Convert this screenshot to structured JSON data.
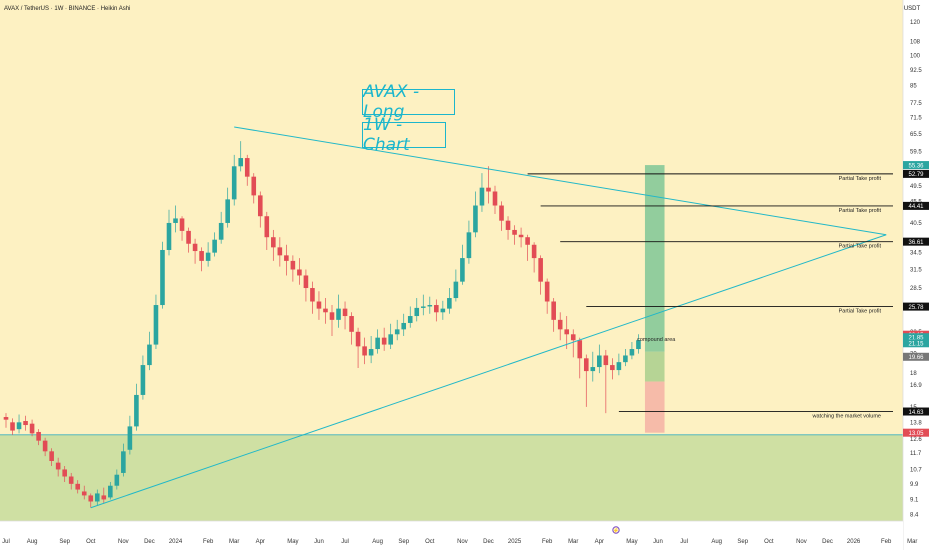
{
  "header": {
    "title": "AVAX / TetherUS · 1W · BINANCE · Heikin Ashi"
  },
  "currency_label": "USDT",
  "overlay_texts": {
    "title_long": "AVAX - Long",
    "title_chart": "1W - Chart"
  },
  "colors": {
    "background": "#fdf1c2",
    "up_candle": "#2ba5a0",
    "down_candle": "#e24c55",
    "trendline": "#22b8c8",
    "zone_green": "#cfe0a3",
    "target_green": "#7fc797",
    "stop_red": "#f5b2a5",
    "title_text": "#1cb6cc"
  },
  "annotations": [
    {
      "label": "Partial Take profit",
      "price": 52.79,
      "badge": "52.79"
    },
    {
      "label": "Partial Take profit",
      "price": 44.41,
      "badge": "44.41"
    },
    {
      "label": "Partial Take profit",
      "price": 36.61,
      "badge": "36.61"
    },
    {
      "label": "Partial Take profit",
      "price": 25.78,
      "badge": "25.78"
    },
    {
      "label": "watching the market volume",
      "price": 14.63,
      "badge": "14.63"
    },
    {
      "label": "compound area",
      "price": 19.9
    }
  ],
  "price_badges": [
    {
      "value": "55.36",
      "price": 55.36,
      "color": "#2ba5a0"
    },
    {
      "value": "52.79",
      "price": 52.79,
      "color": "#111111"
    },
    {
      "value": "44.41",
      "price": 44.41,
      "color": "#111111"
    },
    {
      "value": "36.61",
      "price": 36.61,
      "color": "#111111"
    },
    {
      "value": "25.78",
      "price": 25.78,
      "color": "#111111"
    },
    {
      "value": "22.15",
      "price": 22.15,
      "color": "#e24c55"
    },
    {
      "value": "21.85",
      "price": 21.85,
      "color": "#2ba5a0"
    },
    {
      "value": "21.15",
      "price": 21.15,
      "color": "#2ba5a0"
    },
    {
      "value": "19.66",
      "price": 19.66,
      "color": "#777777"
    },
    {
      "value": "14.63",
      "price": 14.63,
      "color": "#111111"
    },
    {
      "value": "13.05",
      "price": 13.05,
      "color": "#e24c55"
    }
  ],
  "chart_data": {
    "type": "candlestick",
    "title": "AVAX / TetherUS · 1W · BINANCE · Heikin Ashi",
    "scale": "log",
    "ylim": [
      8.1,
      135
    ],
    "y_ticks": [
      120,
      108,
      100,
      92.5,
      85,
      77.5,
      71.5,
      65.5,
      59.5,
      49.5,
      45.5,
      40.5,
      34.5,
      31.5,
      28.5,
      25.5,
      22.5,
      20,
      18,
      16.9,
      15,
      13.8,
      12.6,
      11.7,
      10.7,
      9.9,
      9.1,
      8.4
    ],
    "x_ticks": [
      {
        "label": "Jul",
        "week": 0
      },
      {
        "label": "Aug",
        "week": 4
      },
      {
        "label": "Sep",
        "week": 9
      },
      {
        "label": "Oct",
        "week": 13
      },
      {
        "label": "Nov",
        "week": 18
      },
      {
        "label": "Dec",
        "week": 22
      },
      {
        "label": "2024",
        "week": 26
      },
      {
        "label": "Feb",
        "week": 31
      },
      {
        "label": "Mar",
        "week": 35
      },
      {
        "label": "Apr",
        "week": 39
      },
      {
        "label": "May",
        "week": 44
      },
      {
        "label": "Jun",
        "week": 48
      },
      {
        "label": "Jul",
        "week": 52
      },
      {
        "label": "Aug",
        "week": 57
      },
      {
        "label": "Sep",
        "week": 61
      },
      {
        "label": "Oct",
        "week": 65
      },
      {
        "label": "Nov",
        "week": 70
      },
      {
        "label": "Dec",
        "week": 74
      },
      {
        "label": "2025",
        "week": 78
      },
      {
        "label": "Feb",
        "week": 83
      },
      {
        "label": "Mar",
        "week": 87
      },
      {
        "label": "Apr",
        "week": 91
      },
      {
        "label": "May",
        "week": 96
      },
      {
        "label": "Jun",
        "week": 100
      },
      {
        "label": "Jul",
        "week": 104
      },
      {
        "label": "Aug",
        "week": 109
      },
      {
        "label": "Sep",
        "week": 113
      },
      {
        "label": "Oct",
        "week": 117
      },
      {
        "label": "Nov",
        "week": 122
      },
      {
        "label": "Dec",
        "week": 126
      },
      {
        "label": "2026",
        "week": 130
      },
      {
        "label": "Feb",
        "week": 135
      },
      {
        "label": "Mar",
        "week": 139
      }
    ],
    "candles": [
      [
        14.2,
        14.0,
        14.5,
        13.4
      ],
      [
        13.8,
        13.2,
        14.1,
        12.9
      ],
      [
        13.3,
        13.8,
        14.4,
        13.0
      ],
      [
        13.9,
        13.6,
        14.3,
        13.2
      ],
      [
        13.7,
        13.0,
        14.0,
        12.8
      ],
      [
        13.1,
        12.5,
        13.3,
        12.2
      ],
      [
        12.5,
        11.8,
        12.7,
        11.5
      ],
      [
        11.8,
        11.2,
        12.0,
        10.9
      ],
      [
        11.1,
        10.7,
        11.4,
        10.3
      ],
      [
        10.7,
        10.3,
        10.9,
        10.0
      ],
      [
        10.3,
        9.9,
        10.5,
        9.6
      ],
      [
        9.9,
        9.6,
        10.1,
        9.4
      ],
      [
        9.5,
        9.3,
        9.8,
        9.1
      ],
      [
        9.3,
        9.0,
        9.4,
        8.7
      ],
      [
        9.0,
        9.4,
        9.6,
        8.8
      ],
      [
        9.3,
        9.1,
        9.7,
        8.9
      ],
      [
        9.2,
        9.8,
        10.0,
        9.1
      ],
      [
        9.8,
        10.4,
        10.7,
        9.6
      ],
      [
        10.5,
        11.8,
        12.3,
        10.3
      ],
      [
        11.9,
        13.5,
        14.3,
        11.6
      ],
      [
        13.5,
        16.0,
        17.0,
        13.2
      ],
      [
        16.0,
        18.8,
        19.8,
        15.6
      ],
      [
        18.8,
        21.0,
        22.5,
        18.3
      ],
      [
        21.0,
        26.0,
        27.5,
        20.5
      ],
      [
        26.0,
        35.0,
        36.6,
        25.5
      ],
      [
        35.0,
        40.5,
        43.5,
        34.0
      ],
      [
        40.5,
        41.5,
        44.5,
        38.5
      ],
      [
        41.5,
        38.8,
        42.0,
        36.8
      ],
      [
        38.8,
        36.2,
        39.5,
        34.5
      ],
      [
        36.2,
        34.8,
        37.2,
        32.5
      ],
      [
        34.8,
        33.0,
        35.5,
        31.2
      ],
      [
        33.0,
        34.5,
        36.5,
        32.0
      ],
      [
        34.5,
        37.0,
        38.5,
        33.8
      ],
      [
        37.0,
        40.5,
        43.0,
        36.2
      ],
      [
        40.5,
        46.0,
        49.0,
        39.5
      ],
      [
        46.0,
        55.0,
        58.5,
        44.5
      ],
      [
        55.0,
        57.5,
        63.0,
        53.5
      ],
      [
        57.5,
        52.0,
        58.5,
        49.5
      ],
      [
        52.0,
        47.0,
        53.0,
        45.0
      ],
      [
        47.0,
        42.0,
        48.0,
        39.5
      ],
      [
        42.0,
        37.5,
        43.0,
        35.0
      ],
      [
        37.5,
        35.5,
        39.0,
        33.0
      ],
      [
        35.5,
        34.0,
        37.5,
        32.0
      ],
      [
        34.0,
        33.0,
        36.0,
        30.5
      ],
      [
        33.0,
        31.5,
        34.0,
        29.5
      ],
      [
        31.5,
        30.5,
        33.5,
        29.0
      ],
      [
        30.5,
        28.5,
        31.5,
        26.5
      ],
      [
        28.5,
        26.5,
        29.5,
        24.8
      ],
      [
        26.5,
        25.5,
        28.0,
        24.0
      ],
      [
        25.5,
        25.0,
        27.0,
        23.5
      ],
      [
        25.0,
        24.0,
        26.0,
        22.0
      ],
      [
        24.0,
        25.5,
        27.5,
        23.0
      ],
      [
        25.5,
        24.5,
        26.5,
        22.8
      ],
      [
        24.5,
        22.5,
        25.0,
        21.0
      ],
      [
        22.5,
        20.8,
        23.0,
        18.5
      ],
      [
        20.8,
        19.8,
        21.8,
        18.9
      ],
      [
        19.8,
        20.5,
        22.0,
        19.0
      ],
      [
        20.5,
        21.8,
        22.8,
        20.0
      ],
      [
        21.8,
        21.0,
        23.0,
        20.3
      ],
      [
        21.0,
        22.2,
        23.5,
        20.5
      ],
      [
        22.2,
        22.8,
        24.0,
        21.5
      ],
      [
        22.8,
        23.6,
        24.8,
        22.0
      ],
      [
        23.6,
        24.5,
        25.8,
        23.0
      ],
      [
        24.5,
        25.6,
        27.0,
        23.8
      ],
      [
        25.6,
        25.8,
        27.5,
        24.6
      ],
      [
        25.8,
        26.0,
        27.2,
        24.8
      ],
      [
        26.0,
        25.0,
        26.8,
        23.8
      ],
      [
        25.0,
        25.5,
        26.6,
        24.0
      ],
      [
        25.5,
        27.0,
        28.5,
        24.8
      ],
      [
        27.0,
        29.5,
        31.5,
        26.5
      ],
      [
        29.5,
        33.5,
        36.0,
        29.0
      ],
      [
        33.5,
        38.5,
        41.0,
        32.5
      ],
      [
        38.5,
        44.5,
        48.0,
        37.5
      ],
      [
        44.5,
        49.0,
        53.0,
        43.0
      ],
      [
        49.0,
        48.0,
        55.0,
        45.0
      ],
      [
        48.0,
        44.5,
        49.5,
        42.5
      ],
      [
        44.5,
        41.0,
        45.5,
        38.8
      ],
      [
        41.0,
        39.0,
        42.0,
        37.0
      ],
      [
        39.0,
        38.0,
        40.0,
        36.0
      ],
      [
        38.0,
        37.5,
        39.5,
        35.5
      ],
      [
        37.5,
        36.0,
        38.0,
        33.0
      ],
      [
        36.0,
        33.5,
        36.5,
        31.0
      ],
      [
        33.5,
        29.5,
        34.0,
        27.5
      ],
      [
        29.5,
        26.5,
        30.0,
        24.8
      ],
      [
        26.5,
        24.0,
        27.0,
        22.5
      ],
      [
        24.0,
        22.8,
        25.0,
        21.5
      ],
      [
        22.8,
        22.2,
        24.5,
        20.5
      ],
      [
        22.2,
        21.5,
        22.8,
        19.6
      ],
      [
        21.5,
        19.5,
        21.8,
        17.5
      ],
      [
        19.5,
        18.2,
        19.9,
        15.0
      ],
      [
        18.2,
        18.6,
        20.2,
        17.2
      ],
      [
        18.6,
        19.8,
        21.0,
        18.0
      ],
      [
        19.8,
        18.8,
        20.4,
        14.5
      ],
      [
        18.8,
        18.3,
        19.5,
        17.4
      ],
      [
        18.3,
        19.1,
        20.0,
        17.8
      ],
      [
        19.1,
        19.8,
        20.5,
        18.7
      ],
      [
        19.8,
        20.5,
        21.3,
        19.4
      ],
      [
        20.5,
        21.5,
        22.2,
        20.0
      ]
    ],
    "series_layout": {
      "first_week": 0
    },
    "zones": [
      {
        "name": "demand",
        "from": 8.1,
        "to": 12.9
      },
      {
        "name": "target",
        "from": 20.2,
        "to": 55.36,
        "x_from_week": 98,
        "x_to_week": 101
      },
      {
        "name": "entry",
        "from": 17.2,
        "to": 20.2,
        "x_from_week": 98,
        "x_to_week": 101
      },
      {
        "name": "stop",
        "from": 13.05,
        "to": 17.2,
        "x_from_week": 98,
        "x_to_week": 101
      }
    ],
    "trendlines": [
      {
        "from": {
          "week": 35,
          "price": 68.0
        },
        "to": {
          "week": 135,
          "price": 38.0
        }
      },
      {
        "from": {
          "week": 13,
          "price": 8.7
        },
        "to": {
          "week": 135,
          "price": 38.0
        }
      }
    ]
  }
}
